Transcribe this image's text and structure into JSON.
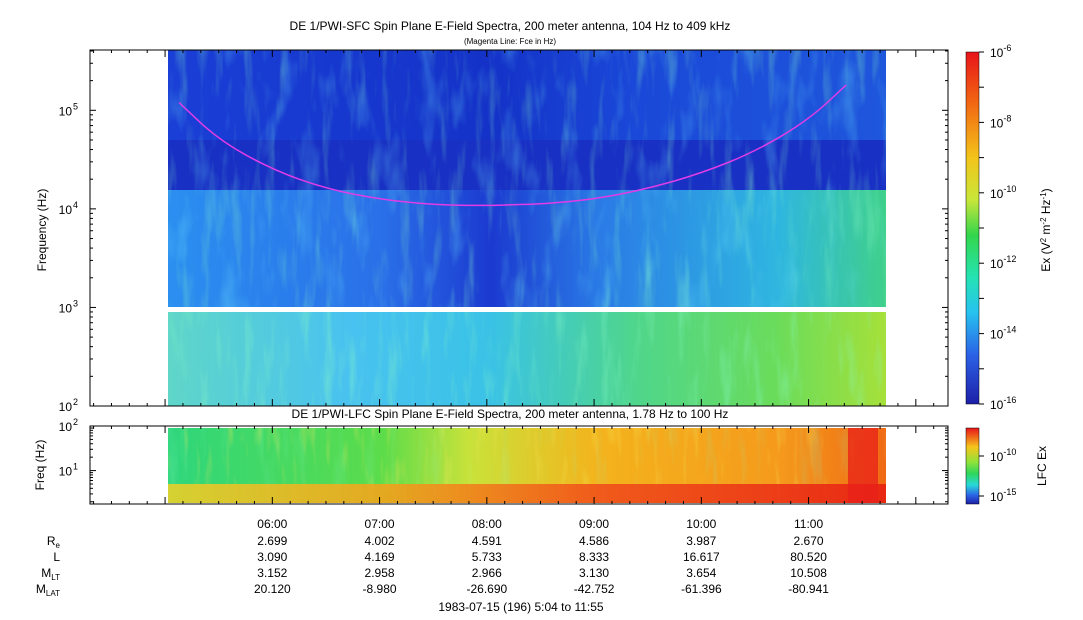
{
  "chart_data": [
    {
      "type": "heatmap",
      "title": "DE 1/PWI-SFC  Spin Plane E-Field Spectra, 200 meter antenna, 104 Hz to 409 kHz",
      "subtitle": "(Magenta Line: Fce in Hz)",
      "ylabel": "Frequency (Hz)",
      "yscale": "log",
      "ylim": [
        100,
        409000
      ],
      "y_ticks": [
        {
          "exp": "2",
          "label": "10"
        },
        {
          "exp": "3",
          "label": "10"
        },
        {
          "exp": "4",
          "label": "10"
        },
        {
          "exp": "5",
          "label": "10"
        }
      ],
      "colorbar": {
        "label_main": "Ex (V",
        "label_sup1": "2",
        "label_mid": " m",
        "label_sup2": "-2",
        "label_mid2": " Hz",
        "label_sup3": "-1",
        "label_end": ")",
        "scale": "log",
        "range": [
          1e-16,
          1e-06
        ],
        "ticks": [
          {
            "base": "10",
            "exp": "-6"
          },
          {
            "base": "10",
            "exp": "-8"
          },
          {
            "base": "10",
            "exp": "-10"
          },
          {
            "base": "10",
            "exp": "-12"
          },
          {
            "base": "10",
            "exp": "-14"
          },
          {
            "base": "10",
            "exp": "-16"
          }
        ]
      },
      "fce_line": {
        "color": "#e23ce6",
        "x_hours": [
          5.13,
          5.5,
          6.0,
          6.5,
          7.0,
          7.5,
          8.0,
          8.2,
          8.5,
          9.0,
          9.5,
          10.0,
          10.5,
          11.0,
          11.35
        ],
        "freq_hz": [
          120000,
          50000,
          25000,
          16000,
          12500,
          11000,
          10800,
          11000,
          11200,
          12500,
          16000,
          23000,
          38000,
          80000,
          180000
        ]
      }
    },
    {
      "type": "heatmap",
      "title": "DE 1/PWI-LFC  Spin Plane E-Field Spectra, 200 meter antenna, 1.78 Hz to 100 Hz",
      "ylabel": "Freq (Hz)",
      "yscale": "log",
      "ylim": [
        1.78,
        100
      ],
      "y_ticks": [
        {
          "exp": "2",
          "label": "10"
        },
        {
          "exp": "1",
          "label": "10"
        }
      ],
      "colorbar": {
        "label": "LFC Ex",
        "scale": "log",
        "ticks": [
          {
            "base": "10",
            "exp": "-10"
          },
          {
            "base": "10",
            "exp": "-15"
          }
        ]
      }
    }
  ],
  "x_axis": {
    "range_hours": [
      4.3,
      12.3
    ],
    "data_range_hours": [
      5.07,
      11.92
    ],
    "ticks": [
      {
        "hour": 6,
        "label": "06:00"
      },
      {
        "hour": 7,
        "label": "07:00"
      },
      {
        "hour": 8,
        "label": "08:00"
      },
      {
        "hour": 9,
        "label": "09:00"
      },
      {
        "hour": 10,
        "label": "10:00"
      },
      {
        "hour": 11,
        "label": "11:00"
      }
    ],
    "caption": "1983-07-15 (196) 5:04 to 11:55"
  },
  "ephemeris": {
    "rows": [
      {
        "label": "R",
        "sub": "e",
        "values": [
          "2.699",
          "4.002",
          "4.591",
          "4.586",
          "3.987",
          "2.670"
        ]
      },
      {
        "label": "L",
        "sub": "",
        "values": [
          "3.090",
          "4.169",
          "5.733",
          "8.333",
          "16.617",
          "80.520"
        ]
      },
      {
        "label": "M",
        "sub": "LT",
        "values": [
          "3.152",
          "2.958",
          "2.966",
          "3.130",
          "3.654",
          "10.508"
        ]
      },
      {
        "label": "M",
        "sub": "LAT",
        "values": [
          "20.120",
          "-8.980",
          "-26.690",
          "-42.752",
          "-61.396",
          "-80.941"
        ]
      }
    ]
  }
}
